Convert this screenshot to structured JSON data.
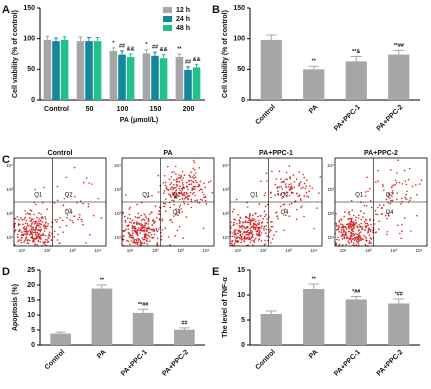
{
  "chart_data": [
    {
      "type": "bar",
      "panel": "A",
      "ylabel": "Cell viability (% of control)",
      "xlabel": "PA (μmol/L)",
      "categories": [
        "Control",
        "50",
        "100",
        "150",
        "200"
      ],
      "series": [
        {
          "name": "12 h",
          "color": "#a6a6a6",
          "values": [
            98,
            96,
            80,
            76,
            70
          ],
          "errors": [
            6,
            7,
            5,
            6,
            5
          ],
          "annotations": [
            null,
            null,
            "*",
            "*",
            "**"
          ]
        },
        {
          "name": "24 h",
          "color": "#15879b",
          "values": [
            96,
            96,
            74,
            72,
            49
          ],
          "errors": [
            5,
            6,
            6,
            6,
            5
          ],
          "annotations": [
            null,
            null,
            "##",
            "##",
            "##"
          ]
        },
        {
          "name": "48 h",
          "color": "#22c08a",
          "values": [
            98,
            96,
            70,
            68,
            53
          ],
          "errors": [
            5,
            6,
            5,
            6,
            5
          ],
          "annotations": [
            null,
            null,
            "&&",
            "&&",
            "&&"
          ]
        }
      ],
      "ylim": [
        0,
        150
      ],
      "yticks": [
        0,
        50,
        100,
        150
      ],
      "legend": "upper right"
    },
    {
      "type": "bar",
      "panel": "B",
      "ylabel": "Cell viability (% of control)",
      "categories": [
        "Control",
        "PA",
        "PA+PPC-1",
        "PA+PPC-2"
      ],
      "values": [
        98,
        50,
        63,
        74
      ],
      "errors": [
        8,
        5,
        8,
        7
      ],
      "annotations": [
        null,
        "**",
        "**&",
        "**##"
      ],
      "color": "#a6a6a6",
      "ylim": [
        0,
        150
      ],
      "yticks": [
        0,
        50,
        100,
        150
      ]
    },
    {
      "type": "flow",
      "panel": "C",
      "panels": [
        {
          "title": "Control"
        },
        {
          "title": "PA"
        },
        {
          "title": "PA+PPC-1"
        },
        {
          "title": "PA+PPC-2"
        }
      ],
      "quadrants": [
        "Q1",
        "Q2",
        "Q4"
      ],
      "yticks": [
        "10⁴",
        "10³",
        "10²",
        "10¹"
      ],
      "xticks": [
        "10¹",
        "10²",
        "10³",
        "10⁴"
      ]
    },
    {
      "type": "bar",
      "panel": "D",
      "ylabel": "Apoptosis (%)",
      "categories": [
        "Control",
        "PA",
        "PA+PPC-1",
        "PA+PPC-2"
      ],
      "values": [
        3.8,
        18.8,
        10.7,
        5.1
      ],
      "errors": [
        0.5,
        1.2,
        1.2,
        0.6
      ],
      "annotations": [
        null,
        "**",
        "**##",
        "##"
      ],
      "color": "#a6a6a6",
      "ylim": [
        0,
        25
      ],
      "yticks": [
        0,
        5,
        10,
        15,
        20,
        25
      ]
    },
    {
      "type": "bar",
      "panel": "E",
      "ylabel": "The level of TNF-α",
      "categories": [
        "Control",
        "PA",
        "PA+PPC-1",
        "PA+PPC-2"
      ],
      "values": [
        6.2,
        11.2,
        9.1,
        8.3
      ],
      "errors": [
        0.6,
        1.0,
        0.6,
        0.9
      ],
      "annotations": [
        null,
        "**",
        "*##",
        "*##"
      ],
      "color": "#a6a6a6",
      "ylim": [
        0,
        15
      ],
      "yticks": [
        0,
        5,
        10,
        15
      ]
    }
  ]
}
